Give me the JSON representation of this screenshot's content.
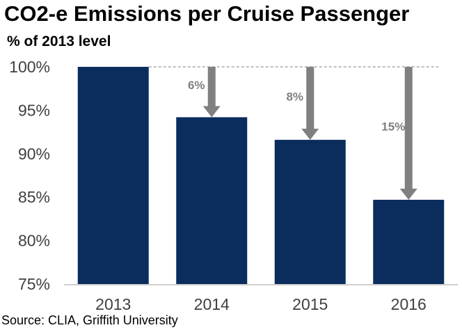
{
  "chart_data": {
    "type": "bar",
    "title": "CO2-e Emissions per Cruise Passenger",
    "subtitle": "% of 2013 level",
    "categories": [
      "2013",
      "2014",
      "2015",
      "2016"
    ],
    "values": [
      100,
      94.2,
      91.6,
      84.7
    ],
    "ylim": [
      75,
      100
    ],
    "yticks": [
      "75%",
      "80%",
      "85%",
      "90%",
      "95%",
      "100%"
    ],
    "ytick_values": [
      75,
      80,
      85,
      90,
      95,
      100
    ],
    "reduction_labels": [
      "",
      "6%",
      "8%",
      "15%"
    ],
    "grid": false,
    "bar_color": "#0b2d5e",
    "arrow_color": "#808080",
    "source": "Source: CLIA, Griffith University"
  }
}
